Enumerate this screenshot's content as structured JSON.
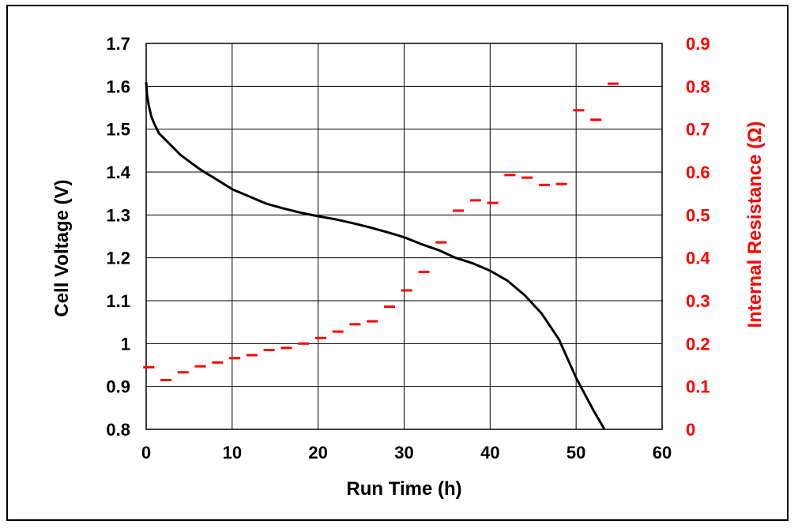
{
  "chart_data": {
    "type": "line",
    "title": "",
    "xlabel": "Run Time (h)",
    "ylabel": "Cell Voltage (V)",
    "y2label": "Internal Resistance (Ω)",
    "xlim": [
      0,
      60
    ],
    "ylim": [
      0.8,
      1.7
    ],
    "y2lim": [
      0,
      0.9
    ],
    "x_ticks": [
      "0",
      "10",
      "20",
      "30",
      "40",
      "50",
      "60"
    ],
    "y_ticks": [
      "0.8",
      "0.9",
      "1",
      "1.1",
      "1.2",
      "1.3",
      "1.4",
      "1.5",
      "1.6",
      "1.7"
    ],
    "y2_ticks": [
      "0",
      "0.1",
      "0.2",
      "0.3",
      "0.4",
      "0.5",
      "0.6",
      "0.7",
      "0.8",
      "0.9"
    ],
    "grid": true,
    "colors": {
      "voltage": "#000000",
      "resistance": "#ff0000"
    },
    "series": [
      {
        "axis": "left",
        "style": "line",
        "x": [
          0,
          0.1,
          0.3,
          0.6,
          1,
          1.5,
          2,
          3,
          4,
          5,
          6,
          7,
          8,
          10,
          12,
          14,
          16,
          18,
          20,
          22,
          24,
          26,
          28,
          30,
          32,
          34,
          36,
          38,
          40,
          42,
          44,
          46,
          48,
          50,
          52,
          53.3
        ],
        "y": [
          1.61,
          1.58,
          1.555,
          1.53,
          1.51,
          1.49,
          1.48,
          1.46,
          1.44,
          1.425,
          1.41,
          1.397,
          1.385,
          1.36,
          1.343,
          1.326,
          1.315,
          1.305,
          1.297,
          1.29,
          1.281,
          1.271,
          1.26,
          1.248,
          1.232,
          1.218,
          1.2,
          1.187,
          1.17,
          1.147,
          1.113,
          1.07,
          1.01,
          0.92,
          0.845,
          0.8
        ]
      },
      {
        "axis": "right",
        "style": "dash",
        "x": [
          0.3,
          2.3,
          4.3,
          6.3,
          8.3,
          10.3,
          12.3,
          14.3,
          16.3,
          18.3,
          20.3,
          22.3,
          24.3,
          26.3,
          28.3,
          30.3,
          32.3,
          34.3,
          36.3,
          38.3,
          40.3,
          42.3,
          44.3,
          46.3,
          48.3,
          50.3,
          52.3,
          54.3
        ],
        "y": [
          0.145,
          0.115,
          0.133,
          0.147,
          0.156,
          0.166,
          0.173,
          0.185,
          0.19,
          0.2,
          0.213,
          0.228,
          0.245,
          0.252,
          0.286,
          0.324,
          0.367,
          0.436,
          0.51,
          0.534,
          0.528,
          0.593,
          0.587,
          0.57,
          0.572,
          0.744,
          0.722,
          0.806
        ]
      }
    ]
  }
}
